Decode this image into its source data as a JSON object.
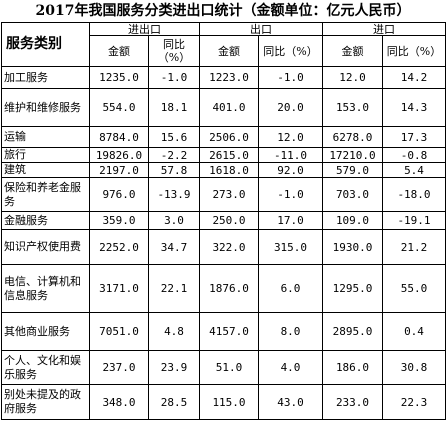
{
  "title": "2017年我国服务分类进出口统计（金额单位：亿元人民币）",
  "header": {
    "category_label": "服务类别",
    "groups": [
      "进出口",
      "出口",
      "进口"
    ],
    "amount_label": "金额",
    "yoy_label": "同比（%）"
  },
  "rows": [
    {
      "name": "加工服务",
      "values": [
        "1235.0",
        "-1.0",
        "1223.0",
        "-1.0",
        "12.0",
        "14.2"
      ]
    },
    {
      "name": "维护和维修服务",
      "values": [
        "554.0",
        "18.1",
        "401.0",
        "20.0",
        "153.0",
        "14.3"
      ]
    },
    {
      "name": "运输",
      "values": [
        "8784.0",
        "15.6",
        "2506.0",
        "12.0",
        "6278.0",
        "17.3"
      ]
    },
    {
      "name": "旅行",
      "values": [
        "19826.0",
        "-2.2",
        "2615.0",
        "-11.0",
        "17210.0",
        "-0.8"
      ]
    },
    {
      "name": "建筑",
      "values": [
        "2197.0",
        "57.8",
        "1618.0",
        "92.0",
        "579.0",
        "5.4"
      ]
    },
    {
      "name": "保险和养老金服务",
      "values": [
        "976.0",
        "-13.9",
        "273.0",
        "-1.0",
        "703.0",
        "-18.0"
      ]
    },
    {
      "name": "金融服务",
      "values": [
        "359.0",
        "3.0",
        "250.0",
        "17.0",
        "109.0",
        "-19.1"
      ]
    },
    {
      "name": "知识产权使用费",
      "values": [
        "2252.0",
        "34.7",
        "322.0",
        "315.0",
        "1930.0",
        "21.2"
      ]
    },
    {
      "name": "电信、计算机和信息服务",
      "values": [
        "3171.0",
        "22.1",
        "1876.0",
        "6.0",
        "1295.0",
        "55.0"
      ]
    },
    {
      "name": "其他商业服务",
      "values": [
        "7051.0",
        "4.8",
        "4157.0",
        "8.0",
        "2895.0",
        "0.4"
      ]
    },
    {
      "name": "个人、文化和娱乐服务",
      "values": [
        "237.0",
        "23.9",
        "51.0",
        "4.0",
        "186.0",
        "30.8"
      ]
    },
    {
      "name": "别处未提及的政府服务",
      "values": [
        "348.0",
        "28.5",
        "115.0",
        "43.0",
        "233.0",
        "22.3"
      ]
    }
  ]
}
